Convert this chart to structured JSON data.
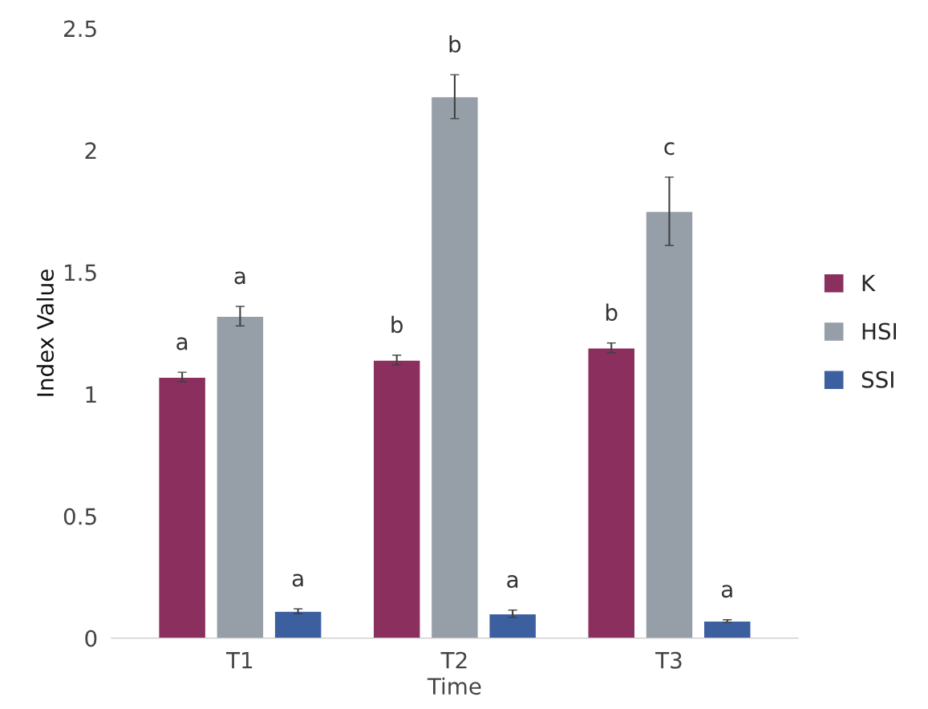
{
  "chart_data": {
    "type": "bar",
    "xlabel": "Time",
    "ylabel": "Index Value",
    "categories": [
      "T1",
      "T2",
      "T3"
    ],
    "series": [
      {
        "name": "K",
        "color": "#8b2f5e",
        "values": [
          1.07,
          1.14,
          1.19
        ],
        "errors": [
          0.02,
          0.02,
          0.02
        ],
        "value_labels": [
          "a",
          "b",
          "b"
        ]
      },
      {
        "name": "HSI",
        "color": "#969fa8",
        "values": [
          1.32,
          2.22,
          1.75
        ],
        "errors": [
          0.04,
          0.09,
          0.14
        ],
        "value_labels": [
          "a",
          "b",
          "c"
        ]
      },
      {
        "name": "SSI",
        "color": "#3c5fa0",
        "values": [
          0.11,
          0.1,
          0.07
        ],
        "errors": [
          0.01,
          0.015,
          0.005
        ],
        "value_labels": [
          "a",
          "a",
          "a"
        ]
      }
    ],
    "ylim": [
      0,
      2.5
    ],
    "yticks": [
      0,
      0.5,
      1,
      1.5,
      2,
      2.5
    ],
    "grid": false,
    "legend": "right"
  }
}
